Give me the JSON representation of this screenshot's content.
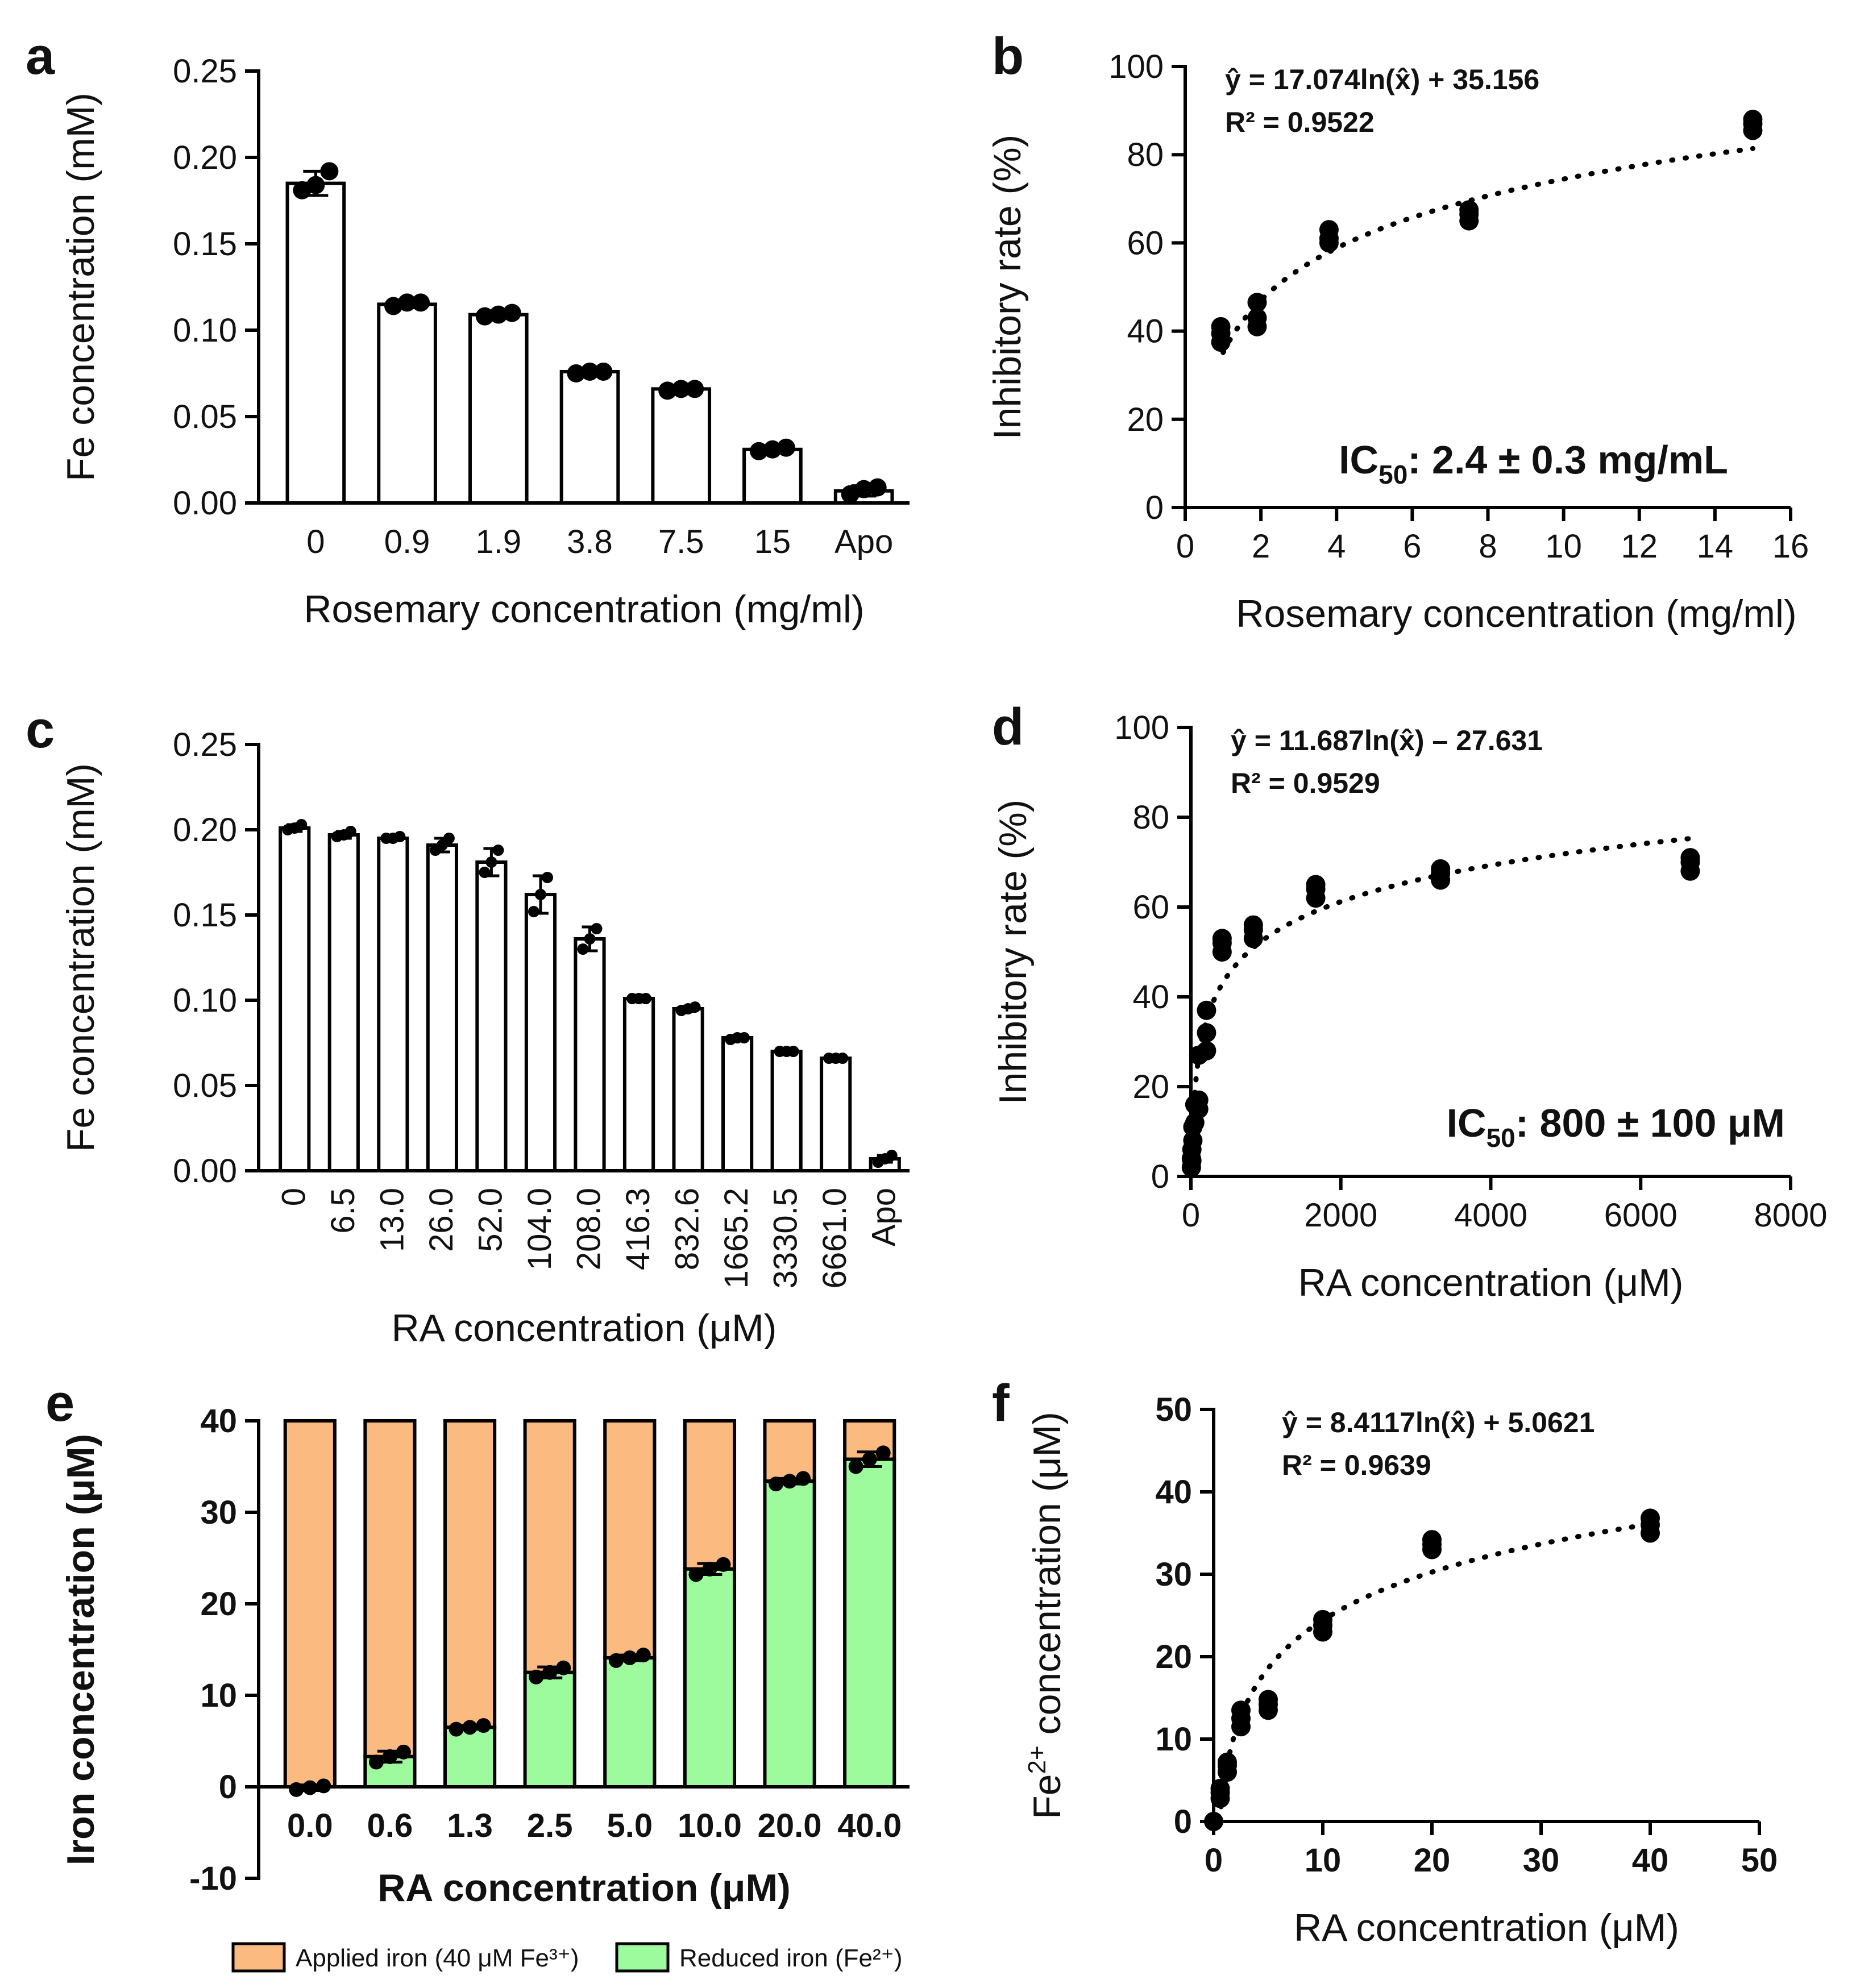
{
  "chart_data": [
    {
      "panel": "a",
      "type": "bar",
      "xlabel": "Rosemary concentration (mg/ml)",
      "ylabel": "Fe concentration (mM)",
      "ylim": [
        0,
        0.25
      ],
      "yticks": [
        "0.00",
        "0.05",
        "0.10",
        "0.15",
        "0.20",
        "0.25"
      ],
      "categories": [
        "0",
        "0.9",
        "1.9",
        "3.8",
        "7.5",
        "15",
        "Apo"
      ],
      "values": [
        0.185,
        0.115,
        0.109,
        0.076,
        0.066,
        0.031,
        0.007
      ],
      "errors": [
        0.007,
        0.002,
        0.002,
        0.001,
        0.001,
        0.002,
        0.003
      ],
      "points": [
        [
          0.181,
          0.184,
          0.192
        ],
        [
          0.114,
          0.116,
          0.116
        ],
        [
          0.108,
          0.109,
          0.11
        ],
        [
          0.075,
          0.076,
          0.076
        ],
        [
          0.065,
          0.066,
          0.066
        ],
        [
          0.03,
          0.031,
          0.032
        ],
        [
          0.005,
          0.008,
          0.009
        ]
      ]
    },
    {
      "panel": "b",
      "type": "scatter",
      "xlabel": "Rosemary concentration (mg/ml)",
      "ylabel": "Inhibitory rate (%)",
      "xlim": [
        0,
        16
      ],
      "ylim": [
        0,
        100
      ],
      "xticks": [
        "0",
        "2",
        "4",
        "6",
        "8",
        "10",
        "12",
        "14",
        "16"
      ],
      "yticks": [
        "0",
        "20",
        "40",
        "60",
        "80",
        "100"
      ],
      "points": [
        [
          0.94,
          37.5
        ],
        [
          0.94,
          39.5
        ],
        [
          0.94,
          41
        ],
        [
          1.9,
          41
        ],
        [
          1.9,
          43
        ],
        [
          1.9,
          46.5
        ],
        [
          3.8,
          60
        ],
        [
          3.8,
          61
        ],
        [
          3.8,
          63
        ],
        [
          7.5,
          65
        ],
        [
          7.5,
          66.5
        ],
        [
          7.5,
          67.5
        ],
        [
          15,
          85.5
        ],
        [
          15,
          87
        ],
        [
          15,
          88
        ]
      ],
      "fit": {
        "a": 17.074,
        "b": 35.156,
        "x_range": [
          1,
          15
        ]
      },
      "equation": "ŷ = 17.074ln(x̂) + 35.156",
      "r2": "R² = 0.9522",
      "ic50_prefix": "IC",
      "ic50_sub": "50",
      "ic50_value": ": 2.4 ± 0.3 mg/mL"
    },
    {
      "panel": "c",
      "type": "bar",
      "xlabel": "RA concentration (μM)",
      "ylabel": "Fe concentration (mM)",
      "ylim": [
        0,
        0.25
      ],
      "yticks": [
        "0.00",
        "0.05",
        "0.10",
        "0.15",
        "0.20",
        "0.25"
      ],
      "categories": [
        "0",
        "6.5",
        "13.0",
        "26.0",
        "52.0",
        "104.0",
        "208.0",
        "416.3",
        "832.6",
        "1665.2",
        "3330.5",
        "6661.0",
        "Apo"
      ],
      "values": [
        0.201,
        0.197,
        0.195,
        0.191,
        0.181,
        0.162,
        0.136,
        0.101,
        0.095,
        0.078,
        0.07,
        0.066,
        0.007
      ],
      "errors": [
        0.002,
        0.002,
        0.001,
        0.004,
        0.008,
        0.011,
        0.007,
        0.0005,
        0.0015,
        0.0008,
        0.0005,
        0.0005,
        0.002
      ],
      "points": [
        [
          0.2,
          0.201,
          0.203
        ],
        [
          0.196,
          0.197,
          0.199
        ],
        [
          0.195,
          0.195,
          0.196
        ],
        [
          0.188,
          0.191,
          0.195
        ],
        [
          0.175,
          0.181,
          0.188
        ],
        [
          0.152,
          0.162,
          0.172
        ],
        [
          0.13,
          0.136,
          0.142
        ],
        [
          0.101,
          0.101,
          0.101
        ],
        [
          0.094,
          0.095,
          0.096
        ],
        [
          0.077,
          0.078,
          0.078
        ],
        [
          0.07,
          0.07,
          0.07
        ],
        [
          0.066,
          0.066,
          0.066
        ],
        [
          0.005,
          0.007,
          0.009
        ]
      ]
    },
    {
      "panel": "d",
      "type": "scatter",
      "xlabel": "RA concentration (μM)",
      "ylabel": "Inhibitory rate (%)",
      "xlim": [
        0,
        8000
      ],
      "ylim": [
        0,
        100
      ],
      "xticks": [
        "0",
        "2000",
        "4000",
        "6000",
        "8000"
      ],
      "yticks": [
        "0",
        "20",
        "40",
        "60",
        "80",
        "100"
      ],
      "points": [
        [
          6.5,
          2
        ],
        [
          6.5,
          4
        ],
        [
          13,
          3.5
        ],
        [
          13,
          6
        ],
        [
          26,
          8
        ],
        [
          26,
          11
        ],
        [
          52,
          12
        ],
        [
          52,
          16
        ],
        [
          104,
          15
        ],
        [
          104,
          17
        ],
        [
          104,
          27
        ],
        [
          208,
          28
        ],
        [
          208,
          32
        ],
        [
          208,
          37
        ],
        [
          416,
          50
        ],
        [
          416,
          52
        ],
        [
          416,
          53
        ],
        [
          833,
          53
        ],
        [
          833,
          55
        ],
        [
          833,
          56
        ],
        [
          1665,
          62
        ],
        [
          1665,
          64
        ],
        [
          1665,
          65
        ],
        [
          3330,
          66
        ],
        [
          3330,
          67.5
        ],
        [
          3330,
          68.5
        ],
        [
          6661,
          68
        ],
        [
          6661,
          70
        ],
        [
          6661,
          71
        ]
      ],
      "fit": {
        "a": 11.687,
        "b": -27.631,
        "x_range": [
          6,
          6661
        ]
      },
      "equation": "ŷ = 11.687ln(x̂) – 27.631",
      "r2": "R² = 0.9529",
      "ic50_prefix": "IC",
      "ic50_sub": "50",
      "ic50_value": ": 800 ± 100 μM"
    },
    {
      "panel": "e",
      "type": "stacked-bar",
      "xlabel": "RA concentration (μM)",
      "ylabel": "Iron concentration (μM)",
      "ylim": [
        -10,
        40
      ],
      "yticks": [
        "-10",
        "0",
        "10",
        "20",
        "30",
        "40"
      ],
      "categories": [
        "0.0",
        "0.6",
        "1.3",
        "2.5",
        "5.0",
        "10.0",
        "20.0",
        "40.0"
      ],
      "series": [
        {
          "name": "Reduced iron (Fe²⁺)",
          "color": "#9dfb9d",
          "values": [
            -0.1,
            3.3,
            6.5,
            12.5,
            14.1,
            23.8,
            33.4,
            35.8
          ],
          "errors": [
            0.3,
            0.6,
            0.2,
            0.6,
            0.3,
            0.6,
            0.3,
            0.8
          ]
        },
        {
          "name": "Applied iron (40 μM Fe³⁺)",
          "color": "#fbbb80",
          "total": 40
        }
      ],
      "points": [
        [
          -0.3,
          -0.1,
          0.1
        ],
        [
          2.7,
          3.3,
          3.8
        ],
        [
          6.3,
          6.5,
          6.7
        ],
        [
          12,
          12.5,
          13
        ],
        [
          13.8,
          14.1,
          14.4
        ],
        [
          23.2,
          23.8,
          24.3
        ],
        [
          33.1,
          33.4,
          33.7
        ],
        [
          35,
          35.8,
          36.5
        ]
      ]
    },
    {
      "panel": "f",
      "type": "scatter",
      "xlabel": "RA concentration (μM)",
      "ylabel_prefix": "Fe",
      "ylabel_sup": "2+",
      "ylabel_suffix": " concentration (μM)",
      "xlim": [
        0,
        50
      ],
      "ylim": [
        0,
        50
      ],
      "xticks": [
        "0",
        "10",
        "20",
        "30",
        "40",
        "50"
      ],
      "yticks": [
        "0",
        "10",
        "20",
        "30",
        "40",
        "50"
      ],
      "points": [
        [
          0,
          0
        ],
        [
          0.6,
          2.8
        ],
        [
          0.6,
          3.5
        ],
        [
          0.6,
          4
        ],
        [
          1.25,
          6
        ],
        [
          1.25,
          6.8
        ],
        [
          1.25,
          7.2
        ],
        [
          2.5,
          11.5
        ],
        [
          2.5,
          12.5
        ],
        [
          2.5,
          13.5
        ],
        [
          5,
          13.5
        ],
        [
          5,
          14.2
        ],
        [
          5,
          14.8
        ],
        [
          10,
          23
        ],
        [
          10,
          23.8
        ],
        [
          10,
          24.5
        ],
        [
          20,
          33
        ],
        [
          20,
          33.6
        ],
        [
          20,
          34.2
        ],
        [
          40,
          35
        ],
        [
          40,
          36
        ],
        [
          40,
          36.8
        ]
      ],
      "fit": {
        "a": 8.4117,
        "b": 5.0621,
        "x_range": [
          0.5,
          40
        ]
      },
      "equation": "ŷ = 8.4117ln(x̂) + 5.0621",
      "r2": "R² = 0.9639"
    }
  ]
}
